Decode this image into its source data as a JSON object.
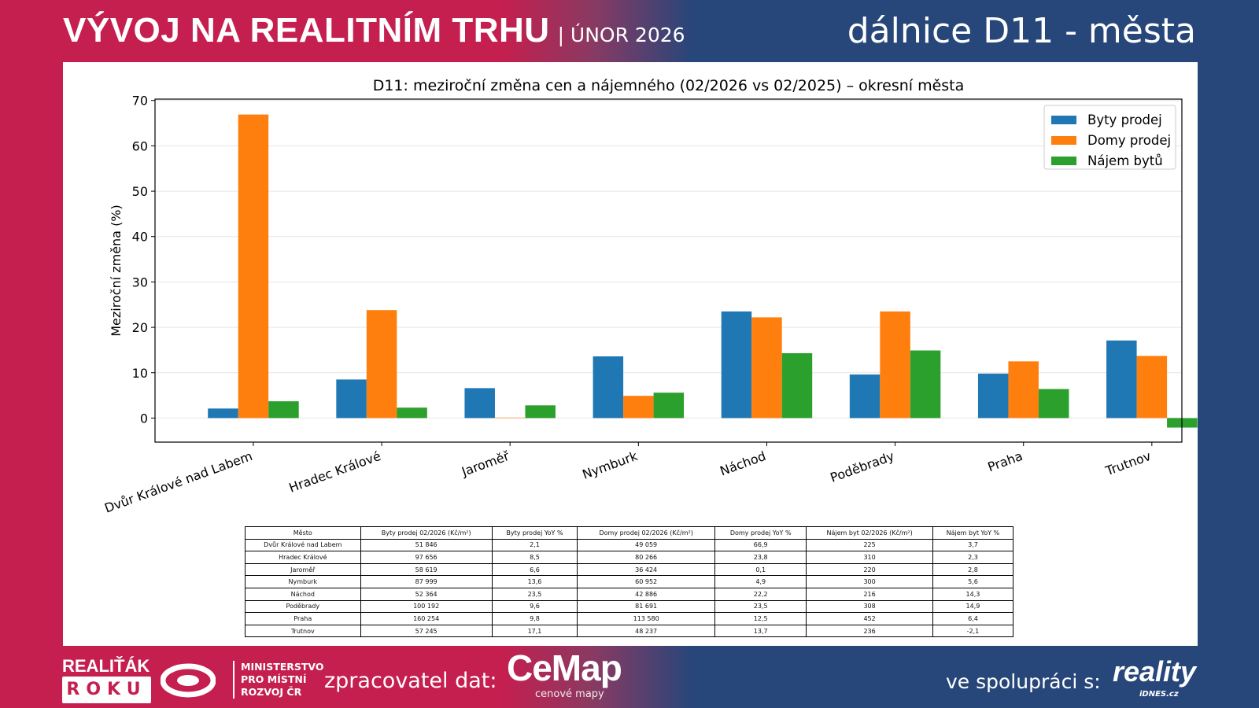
{
  "header": {
    "title": "VÝVOJ NA REALITNÍM TRHU",
    "subtitle": "| ÚNOR 2026",
    "right_title": "dálnice D11 - města"
  },
  "chart_data": {
    "type": "bar",
    "title": "D11: meziroční změna cen a nájemného (02/2026 vs 02/2025) – okresní města",
    "xlabel": "",
    "ylabel": "Meziroční změna (%)",
    "ylim": [
      -5.3,
      70.3
    ],
    "yticks": [
      0,
      10,
      20,
      30,
      40,
      50,
      60,
      70
    ],
    "grid": true,
    "legend_position": "top-right",
    "categories": [
      "Dvůr Králové nad Labem",
      "Hradec Králové",
      "Jaroměř",
      "Nymburk",
      "Náchod",
      "Poděbrady",
      "Praha",
      "Trutnov"
    ],
    "series": [
      {
        "name": "Byty prodej",
        "color": "#1f77b4",
        "values": [
          2.1,
          8.5,
          6.6,
          13.6,
          23.5,
          9.6,
          9.8,
          17.1
        ]
      },
      {
        "name": "Domy prodej",
        "color": "#ff7f0e",
        "values": [
          66.9,
          23.8,
          0.1,
          4.9,
          22.2,
          23.5,
          12.5,
          13.7
        ]
      },
      {
        "name": "Nájem bytů",
        "color": "#2ca02c",
        "values": [
          3.7,
          2.3,
          2.8,
          5.6,
          14.3,
          14.9,
          6.4,
          -2.1
        ]
      }
    ]
  },
  "table": {
    "headers": [
      "Město",
      "Byty prodej 02/2026 (Kč/m²)",
      "Byty prodej YoY %",
      "Domy prodej 02/2026 (Kč/m²)",
      "Domy prodej YoY %",
      "Nájem byt 02/2026 (Kč/m²)",
      "Nájem byt YoY %"
    ],
    "rows": [
      [
        "Dvůr Králové nad Labem",
        "51 846",
        "2,1",
        "49 059",
        "66,9",
        "225",
        "3,7"
      ],
      [
        "Hradec Králové",
        "97 656",
        "8,5",
        "80 266",
        "23,8",
        "310",
        "2,3"
      ],
      [
        "Jaroměř",
        "58 619",
        "6,6",
        "36 424",
        "0,1",
        "220",
        "2,8"
      ],
      [
        "Nymburk",
        "87 999",
        "13,6",
        "60 952",
        "4,9",
        "300",
        "5,6"
      ],
      [
        "Náchod",
        "52 364",
        "23,5",
        "42 886",
        "22,2",
        "216",
        "14,3"
      ],
      [
        "Poděbrady",
        "100 192",
        "9,6",
        "81 691",
        "23,5",
        "308",
        "14,9"
      ],
      [
        "Praha",
        "160 254",
        "9,8",
        "113 580",
        "12,5",
        "452",
        "6,4"
      ],
      [
        "Trutnov",
        "57 245",
        "17,1",
        "48 237",
        "13,7",
        "236",
        "-2,1"
      ]
    ]
  },
  "footer": {
    "realitak": "REALIŤÁK",
    "roku": "ROKU",
    "ministry": [
      "MINISTERSTVO",
      "PRO MÍSTNÍ",
      "ROZVOJ ČR"
    ],
    "processor_label": "zpracovatel dat:",
    "cemap": "CeMap",
    "cemap_sub": "cenové mapy",
    "partner_label": "ve spolupráci s:",
    "reality": "reality",
    "idnes": "iDNES.cz"
  }
}
